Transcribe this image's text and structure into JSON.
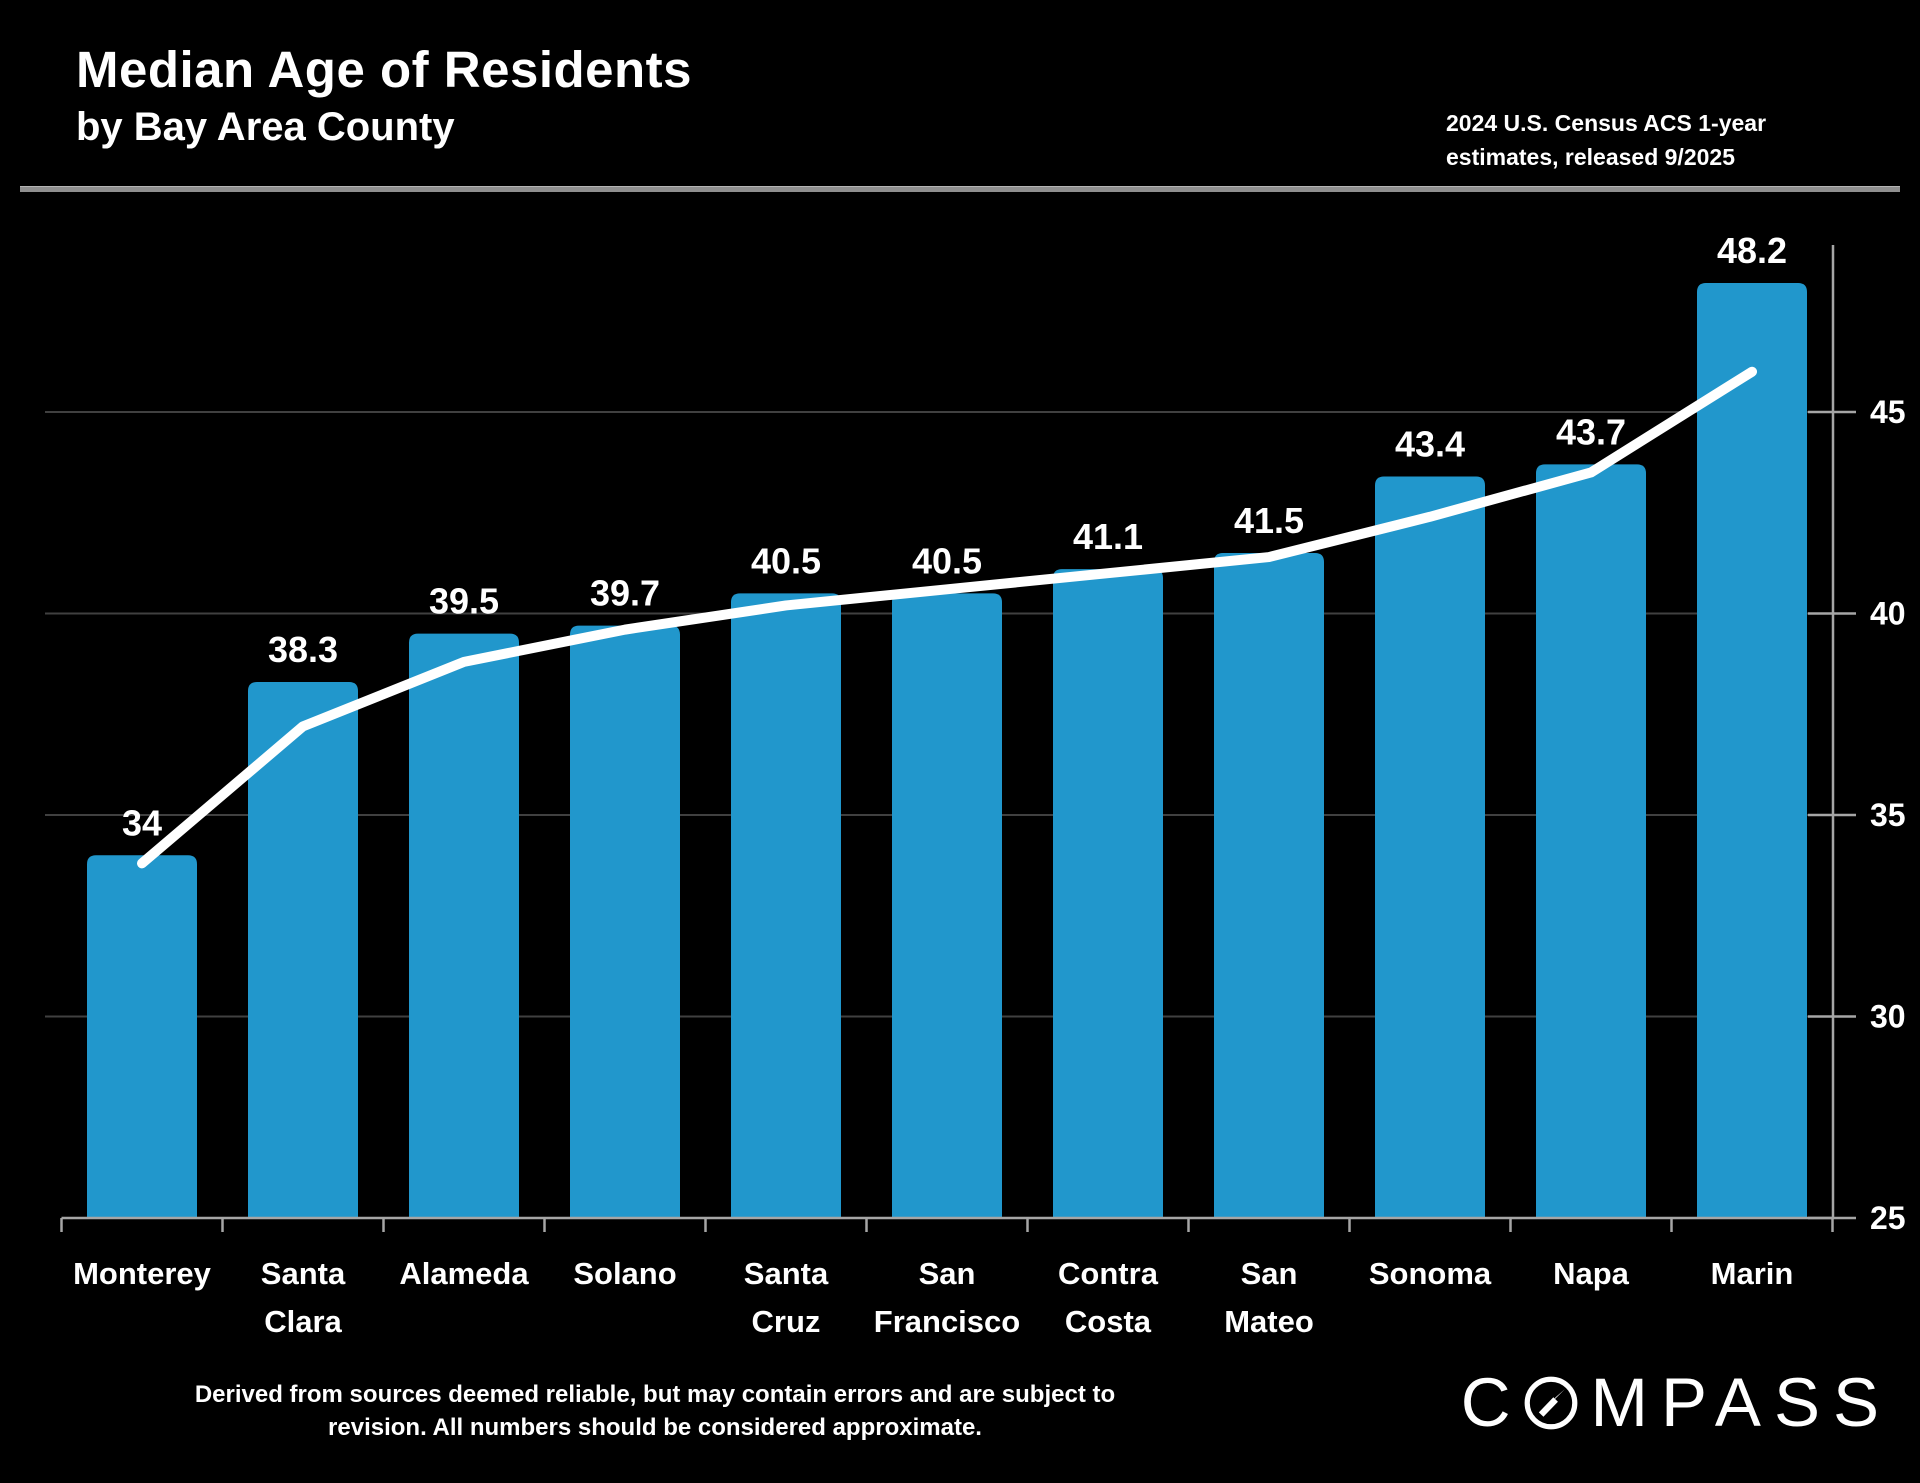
{
  "header": {
    "title": "Median Age of Residents",
    "subtitle": "by Bay Area County",
    "source_line1": "2024 U.S. Census ACS 1-year",
    "source_line2": "estimates, released 9/2025"
  },
  "chart_data": {
    "type": "bar",
    "title": "Median Age of Residents by Bay Area County",
    "categories": [
      "Monterey",
      "Santa Clara",
      "Alameda",
      "Solano",
      "Santa Cruz",
      "San Francisco",
      "Contra Costa",
      "San Mateo",
      "Sonoma",
      "Napa",
      "Marin"
    ],
    "values": [
      34,
      38.3,
      39.5,
      39.7,
      40.5,
      40.5,
      41.1,
      41.5,
      43.4,
      43.7,
      48.2
    ],
    "value_labels": [
      "34",
      "38.3",
      "39.5",
      "39.7",
      "40.5",
      "40.5",
      "41.1",
      "41.5",
      "43.4",
      "43.7",
      "48.2"
    ],
    "trend_line_smoothed_values": [
      33.8,
      37.2,
      38.8,
      39.6,
      40.2,
      40.6,
      41.0,
      41.4,
      42.4,
      43.5,
      46.0
    ],
    "y_axis": {
      "side": "right",
      "min": 25,
      "max": 49,
      "ticks": [
        25,
        30,
        35,
        40,
        45
      ]
    },
    "grid": true,
    "legend": false,
    "xlabel": "",
    "ylabel": "",
    "colors": {
      "bar": "#2197cc",
      "trend_line": "#ffffff",
      "gridline": "#404040",
      "axis": "#a6a6a6",
      "label_text": "#ffffff",
      "background": "#000000"
    }
  },
  "footer": {
    "disclaimer_line1": "Derived from sources deemed reliable, but may contain errors and are subject to",
    "disclaimer_line2": "revision.  All numbers should be considered approximate.",
    "logo_prefix": "C",
    "logo_suffix": "MPASS"
  }
}
